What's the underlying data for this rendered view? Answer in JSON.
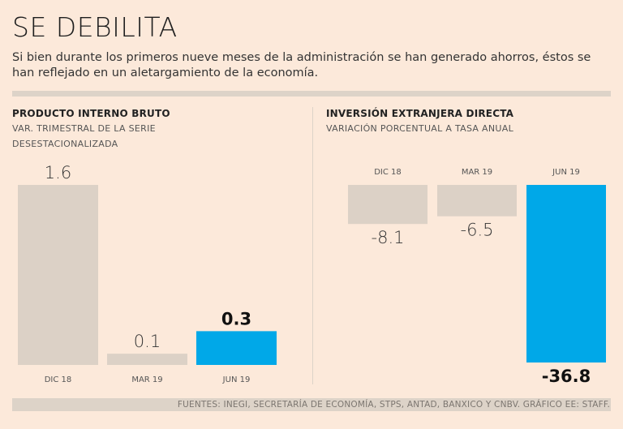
{
  "header": {
    "title": "SE DEBILITA",
    "subtitle": "Si bien durante los primeros nueve meses de la administración se han generado ahorros, éstos se han reflejado en un aletargamiento de la economía."
  },
  "source": "FUENTES: INEGI, SECRETARÍA DE ECONOMÍA, STPS, ANTAD, BANXICO Y CNBV. GRÁFICO EE: STAFF.",
  "colors": {
    "background": "#fce9da",
    "bar": "#dcd1c6",
    "highlight": "#00a8e8"
  },
  "chart_data": [
    {
      "type": "bar",
      "title": "PRODUCTO INTERNO BRUTO",
      "subtitle_line1": "VAR. TRIMESTRAL DE LA SERIE",
      "subtitle_line2": "DESESTACIONALIZADA",
      "categories": [
        "DIC 18",
        "MAR 19",
        "JUN 19"
      ],
      "values": [
        1.6,
        0.1,
        0.3
      ],
      "value_labels": [
        "1.6",
        "0.1",
        "0.3"
      ],
      "highlight_index": 2,
      "ylim": [
        0,
        1.6
      ]
    },
    {
      "type": "bar",
      "title": "INVERSIÓN EXTRANJERA DIRECTA",
      "subtitle_line1": "VARIACIÓN PORCENTUAL A TASA ANUAL",
      "categories": [
        "DIC 18",
        "MAR 19",
        "JUN 19"
      ],
      "values": [
        -8.1,
        -6.5,
        -36.8
      ],
      "value_labels": [
        "-8.1",
        "-6.5",
        "-36.8"
      ],
      "highlight_index": 2,
      "ylim": [
        -36.8,
        0
      ]
    }
  ]
}
